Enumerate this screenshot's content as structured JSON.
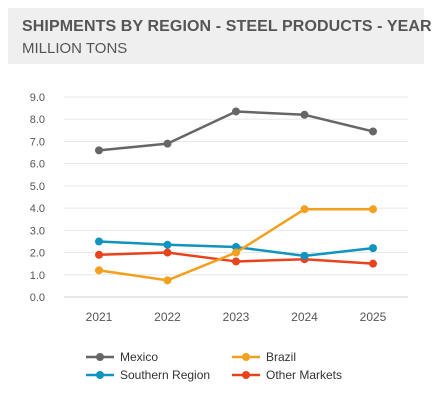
{
  "chart_data": {
    "type": "line",
    "title": "SHIPMENTS BY REGION - STEEL PRODUCTS - YEARLY",
    "subtitle": "MILLION  TONS",
    "categories": [
      "2021",
      "2022",
      "2023",
      "2024",
      "2025"
    ],
    "ylim": [
      0,
      9
    ],
    "yticks": [
      "0.0",
      "1.0",
      "2.0",
      "3.0",
      "4.0",
      "5.0",
      "6.0",
      "7.0",
      "8.0",
      "9.0"
    ],
    "grid": true,
    "legend_position": "bottom",
    "series": [
      {
        "name": "Mexico",
        "color": "#666666",
        "values": [
          6.6,
          6.9,
          8.35,
          8.2,
          7.45
        ]
      },
      {
        "name": "Brazil",
        "color": "#f2a01e",
        "values": [
          1.2,
          0.75,
          2.0,
          3.95,
          3.95
        ]
      },
      {
        "name": "Southern Region",
        "color": "#0f93bf",
        "values": [
          2.5,
          2.35,
          2.25,
          1.85,
          2.2
        ]
      },
      {
        "name": "Other Markets",
        "color": "#e8431c",
        "values": [
          1.9,
          2.0,
          1.6,
          1.7,
          1.5
        ]
      }
    ]
  }
}
